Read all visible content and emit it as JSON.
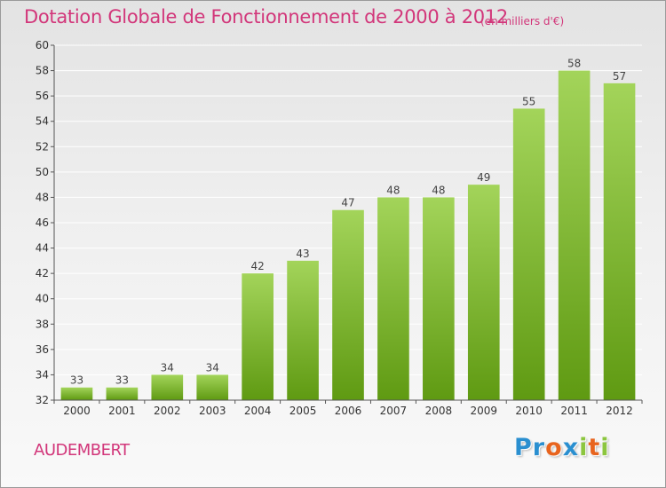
{
  "title": "Dotation Globale de Fonctionnement de 2000 à 2012",
  "subtitle": "(en milliers d'€)",
  "commune": "AUDEMBERT",
  "logo": {
    "letters": [
      {
        "char": "P",
        "color": "#2a8fd0"
      },
      {
        "char": "r",
        "color": "#2a8fd0"
      },
      {
        "char": "o",
        "color": "#e8641e"
      },
      {
        "char": "x",
        "color": "#2a8fd0"
      },
      {
        "char": "i",
        "color": "#8cc63f"
      },
      {
        "char": "t",
        "color": "#e8641e"
      },
      {
        "char": "i",
        "color": "#8cc63f"
      }
    ]
  },
  "colors": {
    "title": "#d2367a",
    "bar_top": "#a3d45a",
    "bar_bottom": "#5f9a12",
    "grid": "#ffffff",
    "axis": "#555555"
  },
  "chart_data": {
    "type": "bar",
    "categories": [
      "2000",
      "2001",
      "2002",
      "2003",
      "2004",
      "2005",
      "2006",
      "2007",
      "2008",
      "2009",
      "2010",
      "2011",
      "2012"
    ],
    "values": [
      33,
      33,
      34,
      34,
      42,
      43,
      47,
      48,
      48,
      49,
      55,
      58,
      57
    ],
    "data_labels": [
      "33",
      "33",
      "34",
      "34",
      "42",
      "43",
      "47",
      "48",
      "48",
      "49",
      "55",
      "58",
      "57"
    ],
    "ylim": [
      32,
      60
    ],
    "yticks": [
      "32",
      "34",
      "36",
      "38",
      "40",
      "42",
      "44",
      "46",
      "48",
      "50",
      "52",
      "54",
      "56",
      "58",
      "60"
    ],
    "grid": true,
    "xlabel": "",
    "ylabel": ""
  }
}
